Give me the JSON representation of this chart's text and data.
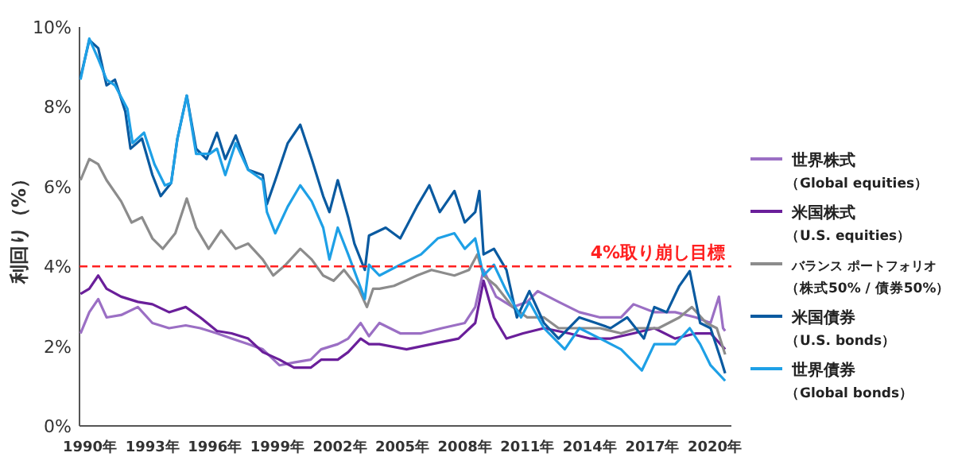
{
  "chart_data": {
    "type": "line",
    "ylabel": "利回り（%）",
    "xlim": [
      1989.5,
      2020.8
    ],
    "ylim": [
      0,
      10
    ],
    "xticks": [
      {
        "value": 1990,
        "label": "1990年"
      },
      {
        "value": 1993,
        "label": "1993年"
      },
      {
        "value": 1996,
        "label": "1996年"
      },
      {
        "value": 1999,
        "label": "1999年"
      },
      {
        "value": 2002,
        "label": "2002年"
      },
      {
        "value": 2005,
        "label": "2005年"
      },
      {
        "value": 2008,
        "label": "2008年"
      },
      {
        "value": 2011,
        "label": "2011年"
      },
      {
        "value": 2014,
        "label": "2014年"
      },
      {
        "value": 2017,
        "label": "2017年"
      },
      {
        "value": 2020,
        "label": "2020年"
      }
    ],
    "yticks": [
      {
        "value": 0,
        "label": "0%"
      },
      {
        "value": 2,
        "label": "2%"
      },
      {
        "value": 4,
        "label": "4%"
      },
      {
        "value": 6,
        "label": "6%"
      },
      {
        "value": 8,
        "label": "8%"
      },
      {
        "value": 10,
        "label": "10%"
      }
    ],
    "grid": false,
    "legend": "right",
    "marker": "none",
    "line_style": "solid",
    "ref_lines": [
      {
        "axis": "y",
        "value": 4,
        "label": "4%取り崩し目標",
        "color": "#ff2020",
        "line_style": "dashed"
      }
    ],
    "series": [
      {
        "name": "世界株式（Global equities）",
        "color": "#9b6fc4",
        "x": [
          1989.55,
          1989.97,
          1990.4,
          1990.8,
          1991.5,
          1992.3,
          1993.0,
          1993.8,
          1994.6,
          1995.3,
          1996.1,
          1996.8,
          1997.6,
          1998.3,
          1999.1,
          1999.8,
          2000.6,
          2001.1,
          2001.9,
          2002.4,
          2003.0,
          2003.4,
          2003.9,
          2004.9,
          2005.9,
          2006.9,
          2008.0,
          2008.5,
          2008.9,
          2009.5,
          2010.3,
          2011.0,
          2011.5,
          2012.5,
          2013.5,
          2014.5,
          2015.5,
          2016.1,
          2017.1,
          2018.1,
          2019.1,
          2019.8,
          2020.2,
          2020.4,
          2020.5
        ],
        "values": [
          2.32,
          2.85,
          3.18,
          2.72,
          2.78,
          2.98,
          2.58,
          2.45,
          2.52,
          2.45,
          2.32,
          2.19,
          2.05,
          1.92,
          1.52,
          1.59,
          1.66,
          1.92,
          2.05,
          2.19,
          2.58,
          2.25,
          2.58,
          2.32,
          2.32,
          2.45,
          2.58,
          2.98,
          3.91,
          3.24,
          2.98,
          3.11,
          3.38,
          3.11,
          2.85,
          2.72,
          2.72,
          3.05,
          2.85,
          2.85,
          2.72,
          2.58,
          3.24,
          2.45,
          2.38
        ]
      },
      {
        "name": "米国株式（U.S. equities）",
        "color": "#6a1f9a",
        "x": [
          1989.55,
          1989.97,
          1990.4,
          1990.8,
          1991.5,
          1992.3,
          1993.0,
          1993.8,
          1994.6,
          1995.3,
          1996.1,
          1996.8,
          1997.6,
          1998.3,
          1999.1,
          1999.8,
          2000.6,
          2001.1,
          2001.9,
          2002.4,
          2003.0,
          2003.4,
          2003.9,
          2005.2,
          2006.4,
          2007.7,
          2008.5,
          2008.9,
          2009.4,
          2010.0,
          2010.8,
          2011.8,
          2013.0,
          2014.0,
          2015.0,
          2016.1,
          2017.1,
          2018.1,
          2019.1,
          2019.8,
          2020.5
        ],
        "values": [
          3.31,
          3.44,
          3.77,
          3.44,
          3.24,
          3.11,
          3.05,
          2.85,
          2.98,
          2.72,
          2.38,
          2.32,
          2.19,
          1.85,
          1.66,
          1.46,
          1.46,
          1.66,
          1.66,
          1.85,
          2.19,
          2.05,
          2.05,
          1.92,
          2.05,
          2.19,
          2.58,
          3.64,
          2.72,
          2.19,
          2.32,
          2.45,
          2.32,
          2.19,
          2.19,
          2.32,
          2.45,
          2.19,
          2.32,
          2.32,
          1.92
        ]
      },
      {
        "name": "バランス ポートフォリオ（株式50% / 債券50%）",
        "color": "#8c8c8c",
        "x": [
          1989.55,
          1989.97,
          1990.4,
          1990.8,
          1991.5,
          1992.0,
          1992.5,
          1993.0,
          1993.5,
          1994.1,
          1994.65,
          1995.1,
          1995.7,
          1996.3,
          1997.0,
          1997.6,
          1998.3,
          1998.8,
          1999.4,
          2000.1,
          2000.65,
          2001.2,
          2001.7,
          2002.2,
          2002.9,
          2003.3,
          2003.6,
          2003.9,
          2004.6,
          2005.7,
          2006.4,
          2007.5,
          2008.2,
          2008.6,
          2008.9,
          2009.5,
          2010.3,
          2011.0,
          2011.8,
          2012.5,
          2013.5,
          2014.5,
          2015.5,
          2016.3,
          2017.3,
          2018.3,
          2018.9,
          2019.6,
          2020.1,
          2020.5
        ],
        "values": [
          6.16,
          6.69,
          6.56,
          6.16,
          5.63,
          5.1,
          5.23,
          4.7,
          4.44,
          4.83,
          5.7,
          4.97,
          4.44,
          4.9,
          4.44,
          4.57,
          4.17,
          3.77,
          4.04,
          4.44,
          4.17,
          3.77,
          3.64,
          3.91,
          3.44,
          2.98,
          3.44,
          3.44,
          3.51,
          3.77,
          3.91,
          3.77,
          3.91,
          4.3,
          3.77,
          3.51,
          2.98,
          2.72,
          2.72,
          2.45,
          2.45,
          2.45,
          2.32,
          2.45,
          2.45,
          2.72,
          2.98,
          2.58,
          2.45,
          1.79
        ]
      },
      {
        "name": "米国債券（U.S. bonds）",
        "color": "#0a5aa0",
        "x": [
          1989.55,
          1989.97,
          1990.4,
          1990.8,
          1991.2,
          1991.7,
          1991.95,
          1992.5,
          1993.0,
          1993.4,
          1993.9,
          1994.2,
          1994.65,
          1995.1,
          1995.6,
          1996.1,
          1996.5,
          1997.0,
          1997.6,
          1998.3,
          1998.5,
          1998.9,
          1999.5,
          2000.1,
          2000.65,
          2001.2,
          2001.5,
          2001.9,
          2002.4,
          2002.7,
          2003.2,
          2003.4,
          2004.2,
          2004.9,
          2005.7,
          2006.3,
          2006.8,
          2007.5,
          2008.0,
          2008.5,
          2008.7,
          2008.9,
          2009.4,
          2010.0,
          2010.5,
          2011.1,
          2011.8,
          2012.5,
          2013.5,
          2014.3,
          2015.0,
          2015.8,
          2016.6,
          2017.1,
          2017.7,
          2018.3,
          2018.8,
          2019.3,
          2019.8,
          2020.3,
          2020.5
        ],
        "values": [
          8.74,
          9.67,
          9.47,
          8.54,
          8.68,
          7.88,
          6.95,
          7.2,
          6.29,
          5.76,
          6.09,
          7.2,
          8.28,
          6.95,
          6.69,
          7.35,
          6.69,
          7.28,
          6.42,
          6.29,
          5.56,
          6.16,
          7.09,
          7.55,
          6.69,
          5.76,
          5.36,
          6.16,
          5.23,
          4.57,
          3.91,
          4.77,
          4.97,
          4.7,
          5.5,
          6.03,
          5.36,
          5.89,
          5.1,
          5.36,
          5.89,
          4.3,
          4.44,
          3.91,
          2.72,
          3.38,
          2.58,
          2.19,
          2.72,
          2.58,
          2.45,
          2.72,
          2.19,
          2.98,
          2.85,
          3.51,
          3.88,
          2.58,
          2.45,
          1.66,
          1.32
        ]
      },
      {
        "name": "世界債券（Global bonds）",
        "color": "#1ea0e6",
        "x": [
          1989.55,
          1989.97,
          1990.4,
          1990.8,
          1991.2,
          1991.8,
          1992.05,
          1992.6,
          1993.1,
          1993.6,
          1993.9,
          1994.2,
          1994.65,
          1995.1,
          1995.75,
          1996.1,
          1996.5,
          1997.0,
          1997.6,
          1998.3,
          1998.5,
          1998.9,
          1999.5,
          2000.1,
          2000.65,
          2001.2,
          2001.5,
          2001.9,
          2002.4,
          2003.2,
          2003.4,
          2003.9,
          2004.9,
          2005.9,
          2006.7,
          2007.5,
          2008.0,
          2008.5,
          2008.9,
          2009.4,
          2010.0,
          2010.7,
          2011.1,
          2011.8,
          2012.8,
          2013.5,
          2014.5,
          2015.5,
          2016.5,
          2017.1,
          2018.1,
          2018.8,
          2019.3,
          2019.8,
          2020.5
        ],
        "values": [
          8.68,
          9.71,
          9.2,
          8.68,
          8.54,
          7.95,
          7.09,
          7.35,
          6.56,
          6.03,
          6.09,
          7.2,
          8.28,
          6.82,
          6.82,
          6.95,
          6.29,
          7.09,
          6.42,
          6.16,
          5.36,
          4.83,
          5.5,
          6.03,
          5.63,
          4.97,
          4.17,
          4.97,
          4.3,
          3.18,
          4.04,
          3.77,
          4.04,
          4.3,
          4.7,
          4.83,
          4.44,
          4.7,
          3.77,
          4.04,
          3.38,
          2.72,
          3.11,
          2.45,
          1.92,
          2.45,
          2.19,
          1.92,
          1.39,
          2.05,
          2.05,
          2.45,
          2.05,
          1.52,
          1.13
        ]
      }
    ]
  }
}
